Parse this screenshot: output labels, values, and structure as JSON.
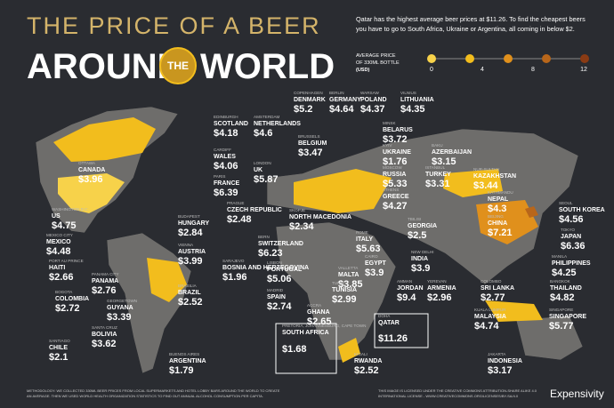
{
  "header": {
    "title_top": "THE PRICE OF A BEER",
    "title_left": "AROUND",
    "title_badge": "THE",
    "title_right": "WORLD",
    "intro": [
      "Qatar has the highest average beer prices at $11.26. To find the cheapest beers",
      "you have to go to South Africa, Ukraine or Argentina, all coming in below $2."
    ]
  },
  "legend": {
    "label": [
      "AVERAGE PRICE",
      "OF 330ML BOTTLE",
      "(USD)"
    ],
    "ticks": [
      "0",
      "4",
      "8",
      "12"
    ]
  },
  "places": [
    [
      "OTTAWA",
      "CANADA",
      "$3.96"
    ],
    [
      "WASHINGTON D.C.",
      "US",
      "$4.75"
    ],
    [
      "MEXICO CITY",
      "MEXICO",
      "$4.48"
    ],
    [
      "PORT AU PRINCE",
      "HAITI",
      "$2.66"
    ],
    [
      "PANAMA CITY",
      "PANAMA",
      "$2.76"
    ],
    [
      "BOGOTA",
      "COLOMBIA",
      "$2.72"
    ],
    [
      "GEORGETOWN",
      "GUYANA",
      "$3.39"
    ],
    [
      "SANTA CRUZ",
      "BOLIVIA",
      "$3.62"
    ],
    [
      "SANTIAGO",
      "CHILE",
      "$2.1"
    ],
    [
      "BRASILIA",
      "BRAZIL",
      "$2.52"
    ],
    [
      "BUENOS AIRES",
      "ARGENTINA",
      "$1.79"
    ],
    [
      "EDINBURGH",
      "SCOTLAND",
      "$4.18"
    ],
    [
      "CARDIFF",
      "WALES",
      "$4.06"
    ],
    [
      "PARIS",
      "FRANCE",
      "$6.39"
    ],
    [
      "AMSTERDAM",
      "NETHERLANDS",
      "$4.6"
    ],
    [
      "COPENHAGEN",
      "DENMARK",
      "$5.2"
    ],
    [
      "BERLIN",
      "GERMANY",
      "$4.64"
    ],
    [
      "WARSAW",
      "POLAND",
      "$4.37"
    ],
    [
      "VILNIUS",
      "LITHUANIA",
      "$4.35"
    ],
    [
      "BRUSSELS",
      "BELGIUM",
      "$3.47"
    ],
    [
      "LONDON",
      "UK",
      "$5.87"
    ],
    [
      "MINSK",
      "BELARUS",
      "$3.72"
    ],
    [
      "KYIV",
      "UKRAINE",
      "$1.76"
    ],
    [
      "MOSCOW",
      "RUSSIA",
      "$5.33"
    ],
    [
      "ATHENS",
      "GREECE",
      "$4.27"
    ],
    [
      "BAKU",
      "AZERBAIJAN",
      "$3.15"
    ],
    [
      "ISTANBUL",
      "TURKEY",
      "$3.31"
    ],
    [
      "NUR-SULTAN",
      "KAZAKHSTAN",
      "$3.44"
    ],
    [
      "KATHMANDU",
      "NEPAL",
      "$4.3"
    ],
    [
      "TBILISI",
      "GEORGIA",
      "$2.5"
    ],
    [
      "BEIJING",
      "CHINA",
      "$7.21"
    ],
    [
      "SEOUL",
      "SOUTH KOREA",
      "$4.56"
    ],
    [
      "TOKYO",
      "JAPAN",
      "$6.36"
    ],
    [
      "MANILA",
      "PHILIPPINES",
      "$4.25"
    ],
    [
      "BANGKOK",
      "THAILAND",
      "$4.82"
    ],
    [
      "SINGAPORE",
      "SINGAPORE",
      "$5.77"
    ],
    [
      "KUALA LUMPUR",
      "MALAYSIA",
      "$4.74"
    ],
    [
      "JAKARTA",
      "INDONESIA",
      "$3.17"
    ],
    [
      "COLOMBO",
      "SRI LANKA",
      "$2.77"
    ],
    [
      "NEW DELHI",
      "INDIA",
      "$3.9"
    ],
    [
      "YEREVAN",
      "ARMENIA",
      "$2.96"
    ],
    [
      "AMMAN",
      "JORDAN",
      "$9.4"
    ],
    [
      "CAIRO",
      "EGYPT",
      "$3.9"
    ],
    [
      "ROME",
      "ITALY",
      "$5.63"
    ],
    [
      "VALLETTA",
      "MALTA",
      "$3.85"
    ],
    [
      "TUNIS",
      "TUNISIA",
      "$2.99"
    ],
    [
      "ACCRA",
      "GHANA",
      "$2.65"
    ],
    [
      "MADRID",
      "SPAIN",
      "$2.74"
    ],
    [
      "LISBON",
      "PORTUGAL",
      "$5.06"
    ],
    [
      "BERN",
      "SWITZERLAND",
      "$6.23"
    ],
    [
      "SKOPJE",
      "NORTH MACEDONIA",
      "$2.34"
    ],
    [
      "PRAGUE",
      "CZECH REPUBLIC",
      "$2.48"
    ],
    [
      "BUDAPEST",
      "HUNGARY",
      "$2.84"
    ],
    [
      "VIENNA",
      "AUSTRIA",
      "$3.99"
    ],
    [
      "SARAJEVO",
      "BOSNIA AND HERZEGOVINA",
      "$1.96"
    ],
    [
      "PRETORIA, JOHANNESBURG, CAPE TOWN",
      "SOUTH AFRICA",
      "$1.68"
    ],
    [
      "KIGALI",
      "RWANDA",
      "$2.52"
    ],
    [
      "DOHA",
      "QATAR",
      "$11.26"
    ]
  ],
  "footer": {
    "methodology": [
      "METHODOLOGY: WE COLLECTED 330ML BEER PRICES FROM LOCAL SUPERMARKETS AND HOTEL LOBBY BARS AROUND THE WORLD TO CREATE",
      "AN AVERAGE. THEN WE USED WORLD HEALTH ORGANIZATION STATISTICS TO FIND OUT ANNUAL ALCOHOL CONSUMPTION PER CAPITA."
    ],
    "license": [
      "THIS IMAGE IS LICENSED UNDER THE CREATIVE COMMONS ATTRIBUTION-SHARE ALIKE 4.0",
      "INTERNATIONAL LICENSE - WWW.CREATIVECOMMONS.ORG/LICENSES/BY-SA/4.0"
    ],
    "brand": "Expensivity"
  }
}
